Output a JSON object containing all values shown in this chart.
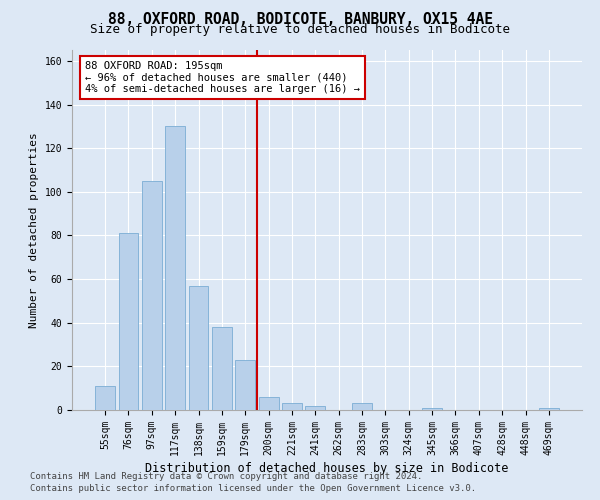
{
  "title": "88, OXFORD ROAD, BODICOTE, BANBURY, OX15 4AE",
  "subtitle": "Size of property relative to detached houses in Bodicote",
  "xlabel": "Distribution of detached houses by size in Bodicote",
  "ylabel": "Number of detached properties",
  "categories": [
    "55sqm",
    "76sqm",
    "97sqm",
    "117sqm",
    "138sqm",
    "159sqm",
    "179sqm",
    "200sqm",
    "221sqm",
    "241sqm",
    "262sqm",
    "283sqm",
    "303sqm",
    "324sqm",
    "345sqm",
    "366sqm",
    "407sqm",
    "428sqm",
    "448sqm",
    "469sqm"
  ],
  "values": [
    11,
    81,
    105,
    130,
    57,
    38,
    23,
    6,
    3,
    2,
    0,
    3,
    0,
    0,
    1,
    0,
    0,
    0,
    0,
    1
  ],
  "bar_color": "#b8d0ea",
  "bar_edge_color": "#7aadd4",
  "vline_color": "#cc0000",
  "annotation_text": "88 OXFORD ROAD: 195sqm\n← 96% of detached houses are smaller (440)\n4% of semi-detached houses are larger (16) →",
  "annotation_box_color": "#ffffff",
  "annotation_box_edge": "#cc0000",
  "ylim": [
    0,
    165
  ],
  "yticks": [
    0,
    20,
    40,
    60,
    80,
    100,
    120,
    140,
    160
  ],
  "bg_color": "#dde8f5",
  "plot_bg_color": "#dde8f5",
  "footer_line1": "Contains HM Land Registry data © Crown copyright and database right 2024.",
  "footer_line2": "Contains public sector information licensed under the Open Government Licence v3.0.",
  "title_fontsize": 10.5,
  "subtitle_fontsize": 9,
  "xlabel_fontsize": 8.5,
  "ylabel_fontsize": 8,
  "tick_fontsize": 7,
  "footer_fontsize": 6.5,
  "annotation_fontsize": 7.5
}
